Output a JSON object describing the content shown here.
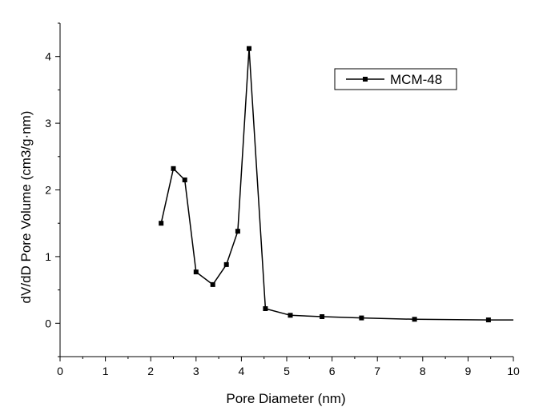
{
  "chart_data": {
    "type": "line",
    "title": "",
    "xlabel": "Pore Diameter (nm)",
    "ylabel": "dV/dD Pore Volume (cm3/g·nm)",
    "xlim": [
      0,
      10
    ],
    "ylim": [
      -0.5,
      4.5
    ],
    "x_ticks": [
      0,
      1,
      2,
      3,
      4,
      5,
      6,
      7,
      8,
      9,
      10
    ],
    "y_ticks": [
      0,
      1,
      2,
      3,
      4
    ],
    "grid": false,
    "legend_position": "top-right",
    "series": [
      {
        "name": "MCM-48",
        "color": "#000000",
        "marker": "square",
        "x": [
          2.23,
          2.5,
          2.75,
          3.0,
          3.37,
          3.67,
          3.92,
          4.17,
          4.53,
          5.08,
          5.78,
          6.65,
          7.82,
          9.45,
          10.0
        ],
        "y": [
          1.5,
          2.32,
          2.15,
          0.77,
          0.58,
          0.88,
          1.38,
          4.12,
          0.22,
          0.12,
          0.1,
          0.08,
          0.06,
          0.05,
          0.05
        ],
        "marker_indices": [
          0,
          1,
          2,
          3,
          4,
          5,
          6,
          7,
          8,
          9,
          10,
          11,
          12,
          13
        ]
      }
    ]
  }
}
